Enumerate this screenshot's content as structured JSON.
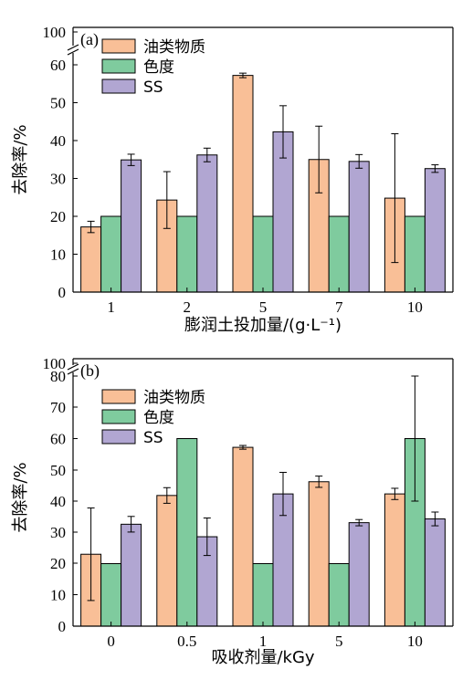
{
  "colors": {
    "oil": "#f9bf97",
    "color": "#7fcb9e",
    "ss": "#b1a6d2",
    "edge": "#000000"
  },
  "chart_data": [
    {
      "type": "bar",
      "panel_label": "(a)",
      "xlabel": "膨润土投加量/(g·L⁻¹)",
      "ylabel": "去除率/%",
      "categories": [
        "1",
        "2",
        "5",
        "7",
        "10"
      ],
      "ylim": [
        0,
        100
      ],
      "axis_break": [
        65,
        97
      ],
      "yticks": [
        0,
        10,
        20,
        30,
        40,
        50,
        60,
        100
      ],
      "legend_position": "top-left",
      "grid": false,
      "series": [
        {
          "name": "油类物质",
          "color_key": "oil",
          "values": [
            17.2,
            24.3,
            57.2,
            35.0,
            24.8
          ],
          "errors": [
            1.5,
            7.5,
            0.6,
            8.8,
            17.0
          ]
        },
        {
          "name": "色度",
          "color_key": "color",
          "values": [
            20,
            20,
            20,
            20,
            20
          ],
          "errors": [
            0,
            0,
            0,
            0,
            0
          ]
        },
        {
          "name": "SS",
          "color_key": "ss",
          "values": [
            34.9,
            36.2,
            42.3,
            34.5,
            32.6
          ],
          "errors": [
            1.5,
            1.8,
            6.9,
            1.8,
            1.0
          ]
        }
      ]
    },
    {
      "type": "bar",
      "panel_label": "(b)",
      "xlabel": "吸收剂量/kGy",
      "ylabel": "去除率/%",
      "categories": [
        "0",
        "0.5",
        "1",
        "5",
        "10"
      ],
      "ylim": [
        0,
        100
      ],
      "axis_break": [
        82,
        97
      ],
      "yticks": [
        0,
        10,
        20,
        30,
        40,
        50,
        60,
        70,
        80,
        100
      ],
      "legend_position": "top-left",
      "grid": false,
      "series": [
        {
          "name": "油类物质",
          "color_key": "oil",
          "values": [
            23.0,
            41.8,
            57.2,
            46.2,
            42.3
          ],
          "errors": [
            14.8,
            2.5,
            0.6,
            1.8,
            1.8
          ]
        },
        {
          "name": "色度",
          "color_key": "color",
          "values": [
            20,
            60,
            20,
            20,
            60
          ],
          "errors": [
            0,
            0,
            0,
            0,
            20
          ]
        },
        {
          "name": "SS",
          "color_key": "ss",
          "values": [
            32.6,
            28.6,
            42.3,
            33.1,
            34.3
          ],
          "errors": [
            2.5,
            6.0,
            6.9,
            1.0,
            2.2
          ]
        }
      ]
    }
  ]
}
